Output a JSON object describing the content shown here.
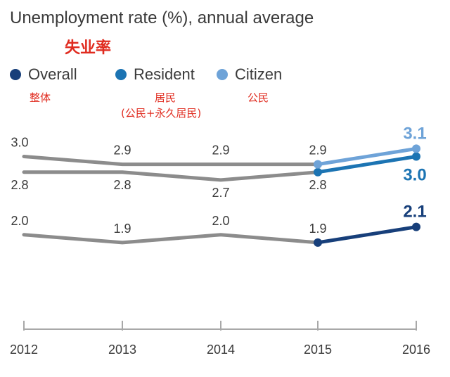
{
  "chart_data": {
    "type": "line",
    "title": "Unemployment rate (%), annual average",
    "title_cn": "失业率",
    "categories": [
      "2012",
      "2013",
      "2014",
      "2015",
      "2016"
    ],
    "ylim": [
      1.0,
      3.4
    ],
    "grid": false,
    "legend_position": "top-left",
    "series": [
      {
        "name": "Overall",
        "name_cn": "整体",
        "color": "#173f7a",
        "values": [
          2.0,
          1.9,
          2.0,
          1.9,
          2.1
        ],
        "labels": [
          "2.0",
          "1.9",
          "2.0",
          "1.9",
          "2.1"
        ]
      },
      {
        "name": "Resident",
        "name_cn": "居民",
        "name_cn_note": "(公民+永久居民)",
        "color": "#1c74b3",
        "values": [
          2.8,
          2.8,
          2.7,
          2.8,
          3.0
        ],
        "labels": [
          "2.8",
          "2.8",
          "2.7",
          "2.8",
          "3.0"
        ]
      },
      {
        "name": "Citizen",
        "name_cn": "公民",
        "color": "#6ea3d8",
        "values": [
          3.0,
          2.9,
          2.9,
          2.9,
          3.1
        ],
        "labels": [
          "3.0",
          "2.9",
          "2.9",
          "2.9",
          "3.1"
        ]
      }
    ],
    "history_color": "#8c8c8c",
    "highlight_from_index": 3
  }
}
